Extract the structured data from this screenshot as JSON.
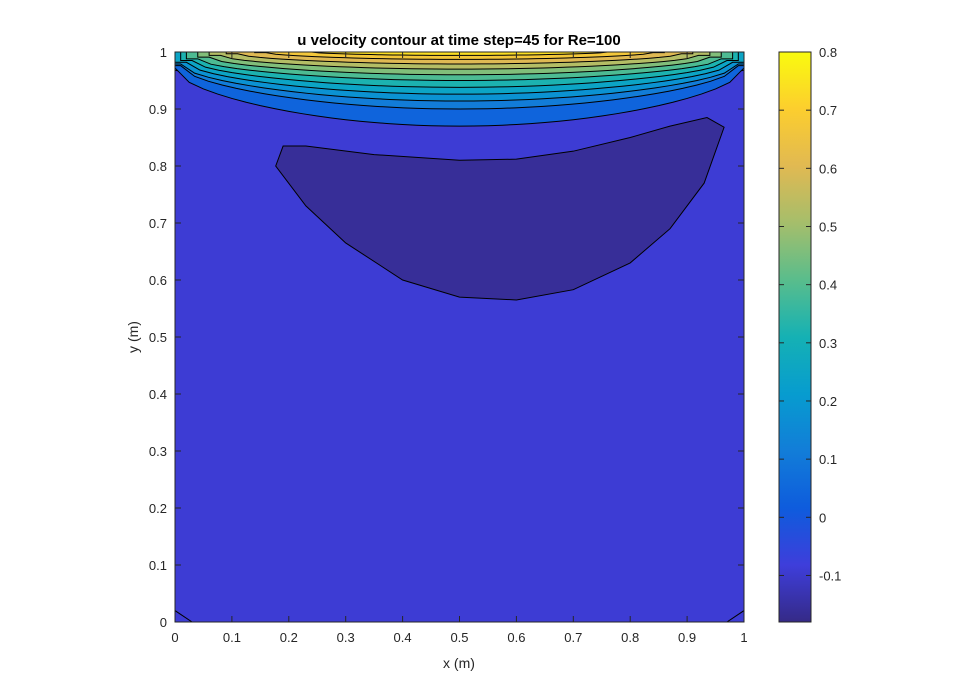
{
  "chart_data": {
    "type": "contour",
    "title": "u velocity contour at time step=45 for Re=100",
    "xlabel": "x (m)",
    "ylabel": "y (m)",
    "xlim": [
      0,
      1
    ],
    "ylim": [
      0,
      1
    ],
    "x_ticks": [
      0,
      0.1,
      0.2,
      0.3,
      0.4,
      0.5,
      0.6,
      0.7,
      0.8,
      0.9,
      1
    ],
    "x_tick_labels": [
      "0",
      "0.1",
      "0.2",
      "0.3",
      "0.4",
      "0.5",
      "0.6",
      "0.7",
      "0.8",
      "0.9",
      "1"
    ],
    "y_ticks": [
      0,
      0.1,
      0.2,
      0.3,
      0.4,
      0.5,
      0.6,
      0.7,
      0.8,
      0.9,
      1
    ],
    "y_tick_labels": [
      "0",
      "0.1",
      "0.2",
      "0.3",
      "0.4",
      "0.5",
      "0.6",
      "0.7",
      "0.8",
      "0.9",
      "1"
    ],
    "colorbar": {
      "colormap": "parula",
      "range": [
        -0.18,
        0.8
      ],
      "ticks": [
        -0.1,
        0,
        0.1,
        0.2,
        0.3,
        0.4,
        0.5,
        0.6,
        0.7,
        0.8
      ],
      "tick_labels": [
        "-0.1",
        "0",
        "0.1",
        "0.2",
        "0.3",
        "0.4",
        "0.5",
        "0.6",
        "0.7",
        "0.8"
      ]
    },
    "background_level": -0.09,
    "regions": [
      {
        "level": -0.16,
        "points": [
          [
            0.177,
            0.8
          ],
          [
            0.19,
            0.835
          ],
          [
            0.23,
            0.835
          ],
          [
            0.35,
            0.82
          ],
          [
            0.5,
            0.81
          ],
          [
            0.6,
            0.812
          ],
          [
            0.7,
            0.826
          ],
          [
            0.8,
            0.85
          ],
          [
            0.87,
            0.87
          ],
          [
            0.935,
            0.885
          ],
          [
            0.965,
            0.868
          ],
          [
            0.93,
            0.77
          ],
          [
            0.87,
            0.69
          ],
          [
            0.8,
            0.63
          ],
          [
            0.7,
            0.583
          ],
          [
            0.6,
            0.565
          ],
          [
            0.5,
            0.57
          ],
          [
            0.4,
            0.6
          ],
          [
            0.3,
            0.665
          ],
          [
            0.23,
            0.73
          ],
          [
            0.177,
            0.8
          ]
        ]
      }
    ],
    "bands": [
      {
        "level": -0.03,
        "y_center": 0.95,
        "y_edge": 0.968,
        "half_width": 0.5
      },
      {
        "level": 0.04,
        "y_center": 0.87,
        "y_edge": 0.972,
        "half_width": 0.5
      },
      {
        "level": 0.11,
        "y_center": 0.9,
        "y_edge": 0.976,
        "half_width": 0.49
      },
      {
        "level": 0.18,
        "y_center": 0.914,
        "y_edge": 0.979,
        "half_width": 0.49
      },
      {
        "level": 0.25,
        "y_center": 0.926,
        "y_edge": 0.982,
        "half_width": 0.48
      },
      {
        "level": 0.32,
        "y_center": 0.938,
        "y_edge": 0.985,
        "half_width": 0.47
      },
      {
        "level": 0.39,
        "y_center": 0.95,
        "y_edge": 0.988,
        "half_width": 0.46
      },
      {
        "level": 0.46,
        "y_center": 0.96,
        "y_edge": 0.991,
        "half_width": 0.44
      },
      {
        "level": 0.53,
        "y_center": 0.97,
        "y_edge": 0.994,
        "half_width": 0.42
      },
      {
        "level": 0.6,
        "y_center": 0.979,
        "y_edge": 0.997,
        "half_width": 0.39
      },
      {
        "level": 0.67,
        "y_center": 0.987,
        "y_edge": 0.999,
        "half_width": 0.34
      },
      {
        "level": 0.74,
        "y_center": 0.994,
        "y_edge": 1.0,
        "half_width": 0.26
      }
    ],
    "corner_contours": [
      [
        [
          0,
          0.02
        ],
        [
          0.03,
          0
        ]
      ],
      [
        [
          0.97,
          0
        ],
        [
          1,
          0.02
        ]
      ]
    ]
  }
}
